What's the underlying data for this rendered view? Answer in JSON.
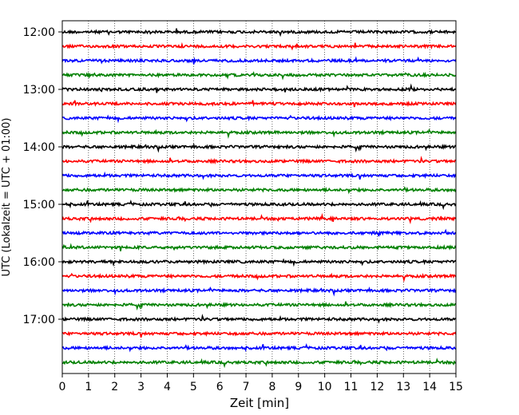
{
  "chart_data": {
    "type": "line",
    "title": "",
    "xlabel": "Zeit  [min]",
    "ylabel": "UTC (Lokalzeit = UTC + 01:00)",
    "xlim": [
      0,
      15
    ],
    "x_ticks": [
      "0",
      "1",
      "2",
      "3",
      "4",
      "5",
      "6",
      "7",
      "8",
      "9",
      "10",
      "11",
      "12",
      "13",
      "14",
      "15"
    ],
    "y_ticks": [
      "12:00",
      "13:00",
      "14:00",
      "15:00",
      "16:00",
      "17:00"
    ],
    "trace_interval_minutes": 15,
    "trace_start": "12:00",
    "trace_end": "17:45",
    "grid": "vertical dotted at each minute",
    "color_cycle": [
      "#000000",
      "#ff0000",
      "#0000ff",
      "#008000"
    ],
    "traces": [
      {
        "start": "12:00"
      },
      {
        "start": "12:15"
      },
      {
        "start": "12:30"
      },
      {
        "start": "12:45"
      },
      {
        "start": "13:00"
      },
      {
        "start": "13:15"
      },
      {
        "start": "13:30"
      },
      {
        "start": "13:45"
      },
      {
        "start": "14:00"
      },
      {
        "start": "14:15"
      },
      {
        "start": "14:30"
      },
      {
        "start": "14:45"
      },
      {
        "start": "15:00"
      },
      {
        "start": "15:15"
      },
      {
        "start": "15:30"
      },
      {
        "start": "15:45"
      },
      {
        "start": "16:00"
      },
      {
        "start": "16:15"
      },
      {
        "start": "16:30"
      },
      {
        "start": "16:45"
      },
      {
        "start": "17:00"
      },
      {
        "start": "17:15"
      },
      {
        "start": "17:30"
      },
      {
        "start": "17:45"
      }
    ]
  }
}
